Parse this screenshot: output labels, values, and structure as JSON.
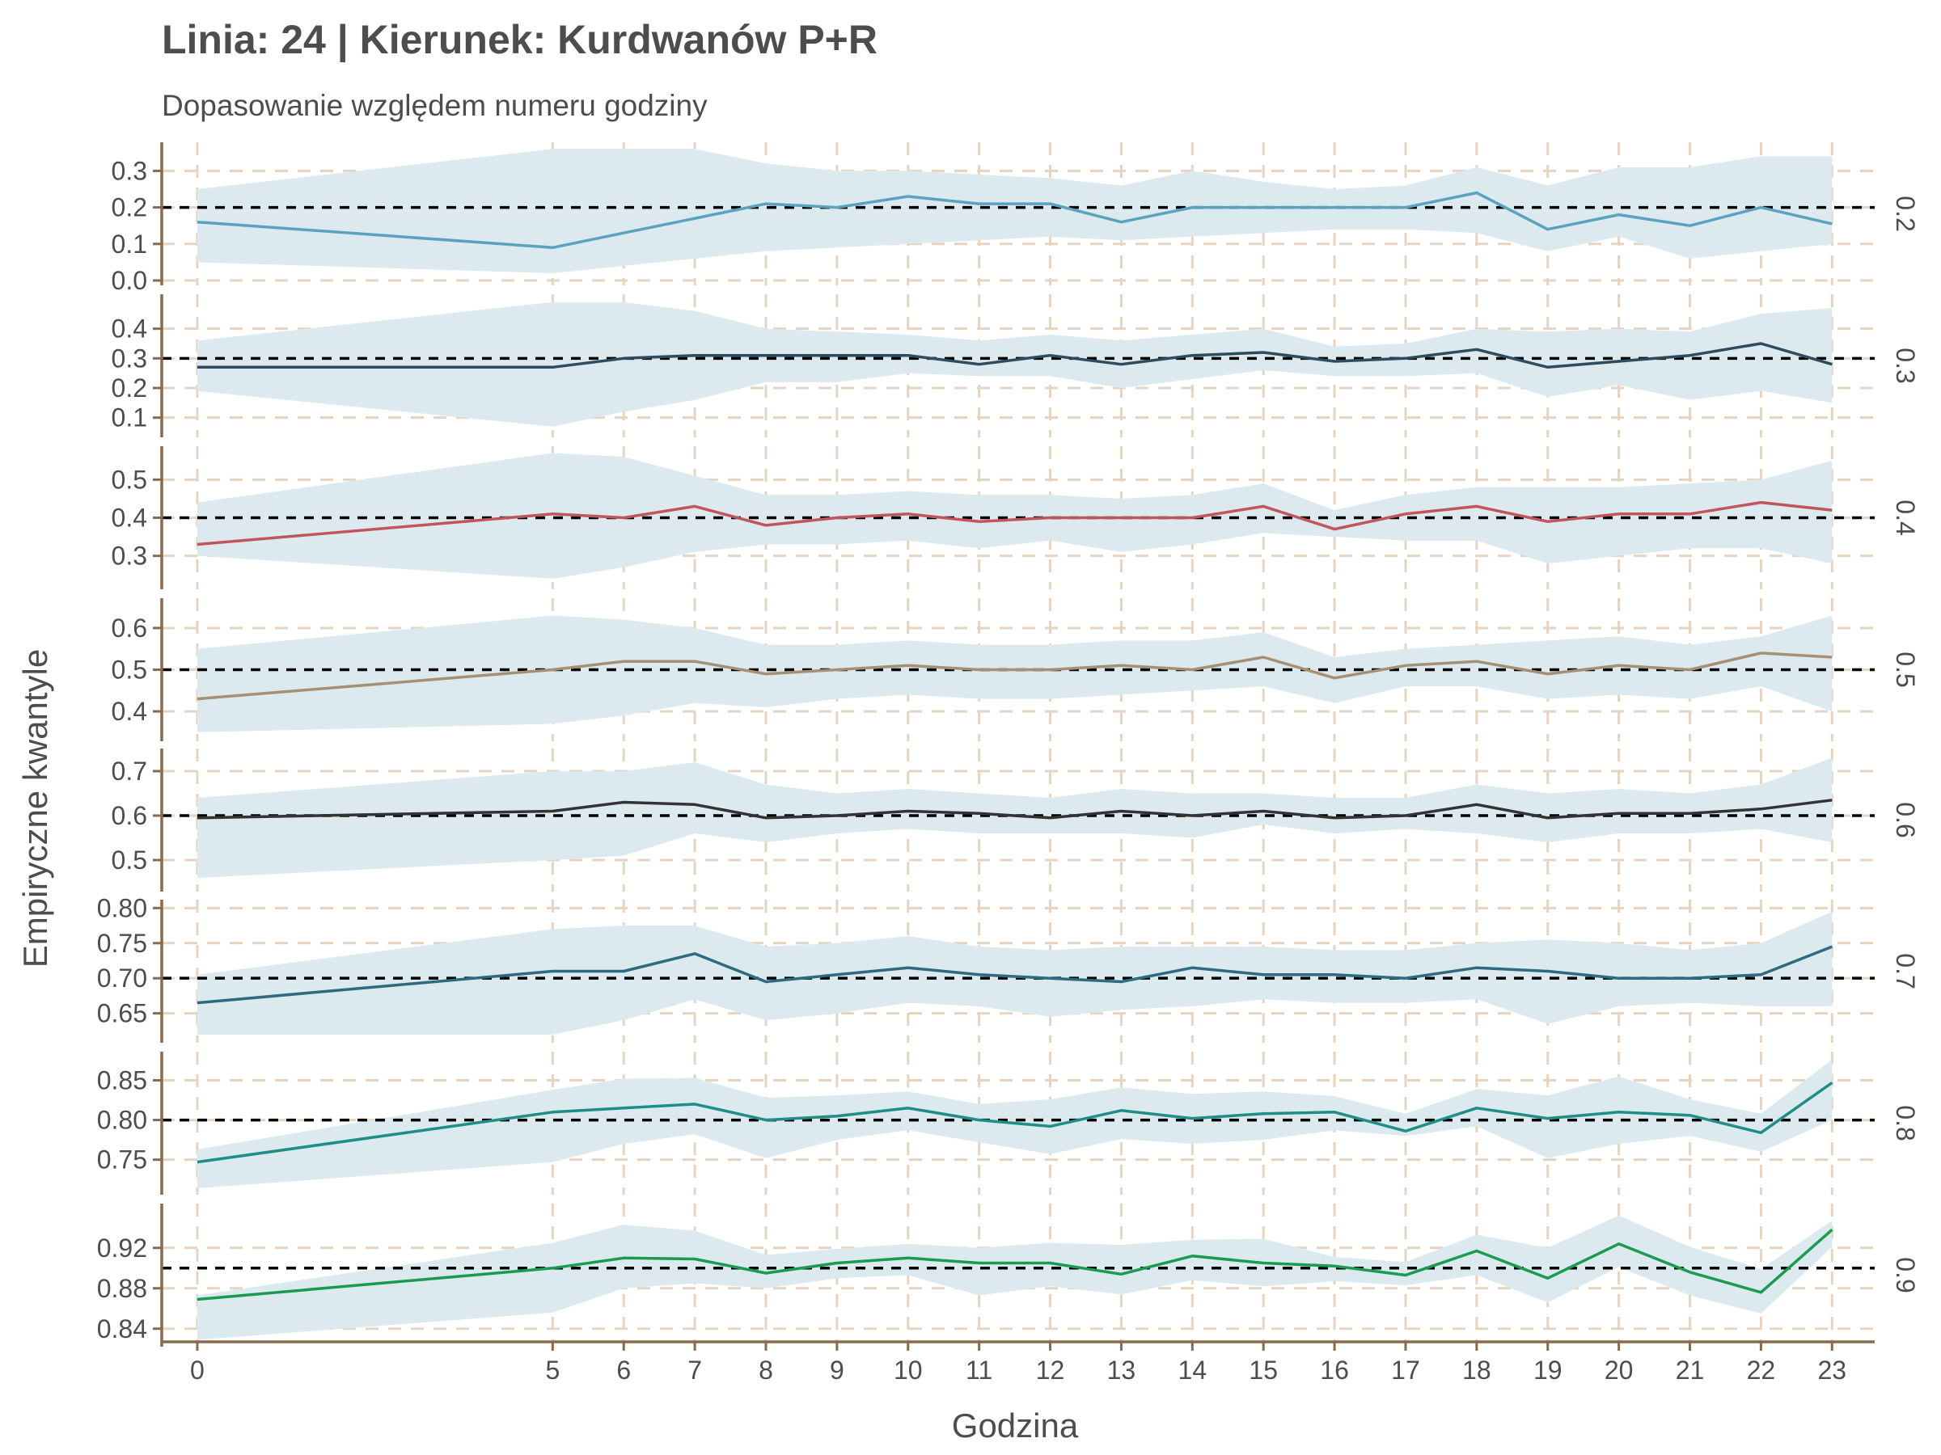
{
  "chart_data": {
    "type": "line",
    "title": "Linia: 24 | Kierunek: Kurdwanów P+R",
    "subtitle": "Dopasowanie względem numeru godziny",
    "xlabel": "Godzina",
    "ylabel": "Empiryczne kwantyle",
    "x": [
      0,
      5,
      6,
      7,
      8,
      9,
      10,
      11,
      12,
      13,
      14,
      15,
      16,
      17,
      18,
      19,
      20,
      21,
      22,
      23
    ],
    "xlim": [
      -0.5,
      23.6
    ],
    "grid": true,
    "band_color": "#dce9ee",
    "grid_color": "#e6d3c0",
    "axis_color": "#8a6a4e",
    "reference_line_color": "#000000",
    "panels": [
      {
        "strip": "0.2",
        "reference": 0.2,
        "color": "#5aa3bf",
        "ylim": [
          0.0,
          0.365
        ],
        "yticks": [
          0.0,
          0.1,
          0.2,
          0.3
        ],
        "ytick_labels": [
          "0.0",
          "0.1",
          "0.2",
          "0.3"
        ],
        "values": [
          0.16,
          0.09,
          0.13,
          0.17,
          0.21,
          0.2,
          0.23,
          0.21,
          0.21,
          0.16,
          0.2,
          0.2,
          0.2,
          0.2,
          0.24,
          0.14,
          0.18,
          0.15,
          0.2,
          0.155
        ],
        "lower": [
          0.05,
          0.02,
          0.04,
          0.06,
          0.08,
          0.09,
          0.1,
          0.11,
          0.12,
          0.11,
          0.12,
          0.13,
          0.14,
          0.14,
          0.13,
          0.08,
          0.12,
          0.06,
          0.08,
          0.1
        ],
        "upper": [
          0.25,
          0.36,
          0.36,
          0.36,
          0.32,
          0.3,
          0.3,
          0.29,
          0.28,
          0.26,
          0.3,
          0.27,
          0.25,
          0.26,
          0.31,
          0.26,
          0.31,
          0.31,
          0.34,
          0.34
        ]
      },
      {
        "strip": "0.3",
        "reference": 0.3,
        "color": "#2f4b5e",
        "ylim": [
          0.05,
          0.5
        ],
        "yticks": [
          0.1,
          0.2,
          0.3,
          0.4
        ],
        "ytick_labels": [
          "0.1",
          "0.2",
          "0.3",
          "0.4"
        ],
        "values": [
          0.27,
          0.27,
          0.3,
          0.31,
          0.31,
          0.31,
          0.31,
          0.28,
          0.31,
          0.28,
          0.31,
          0.32,
          0.29,
          0.3,
          0.33,
          0.27,
          0.29,
          0.31,
          0.35,
          0.28
        ],
        "lower": [
          0.19,
          0.07,
          0.12,
          0.16,
          0.22,
          0.22,
          0.25,
          0.24,
          0.24,
          0.2,
          0.23,
          0.26,
          0.24,
          0.24,
          0.25,
          0.17,
          0.21,
          0.16,
          0.19,
          0.15
        ],
        "upper": [
          0.36,
          0.49,
          0.49,
          0.46,
          0.4,
          0.39,
          0.38,
          0.36,
          0.38,
          0.36,
          0.38,
          0.4,
          0.34,
          0.35,
          0.4,
          0.39,
          0.4,
          0.39,
          0.45,
          0.47
        ]
      },
      {
        "strip": "0.4",
        "reference": 0.4,
        "color": "#c0555e",
        "ylim": [
          0.225,
          0.575
        ],
        "yticks": [
          0.3,
          0.4,
          0.5
        ],
        "ytick_labels": [
          "0.3",
          "0.4",
          "0.5"
        ],
        "values": [
          0.33,
          0.41,
          0.4,
          0.43,
          0.38,
          0.4,
          0.41,
          0.39,
          0.4,
          0.4,
          0.4,
          0.43,
          0.37,
          0.41,
          0.43,
          0.39,
          0.41,
          0.41,
          0.44,
          0.42
        ],
        "lower": [
          0.3,
          0.24,
          0.27,
          0.31,
          0.33,
          0.33,
          0.34,
          0.32,
          0.34,
          0.31,
          0.33,
          0.36,
          0.35,
          0.34,
          0.34,
          0.28,
          0.3,
          0.32,
          0.32,
          0.28
        ],
        "upper": [
          0.44,
          0.57,
          0.56,
          0.51,
          0.46,
          0.46,
          0.47,
          0.46,
          0.46,
          0.45,
          0.46,
          0.49,
          0.42,
          0.46,
          0.48,
          0.48,
          0.48,
          0.49,
          0.5,
          0.55
        ]
      },
      {
        "strip": "0.5",
        "reference": 0.5,
        "color": "#a69073",
        "ylim": [
          0.34,
          0.66
        ],
        "yticks": [
          0.4,
          0.5,
          0.6
        ],
        "ytick_labels": [
          "0.4",
          "0.5",
          "0.6"
        ],
        "values": [
          0.43,
          0.5,
          0.52,
          0.52,
          0.49,
          0.5,
          0.51,
          0.5,
          0.5,
          0.51,
          0.5,
          0.53,
          0.48,
          0.51,
          0.52,
          0.49,
          0.51,
          0.5,
          0.54,
          0.53
        ],
        "lower": [
          0.35,
          0.37,
          0.39,
          0.42,
          0.41,
          0.43,
          0.44,
          0.43,
          0.43,
          0.44,
          0.45,
          0.46,
          0.42,
          0.46,
          0.46,
          0.43,
          0.44,
          0.43,
          0.46,
          0.4
        ],
        "upper": [
          0.55,
          0.63,
          0.62,
          0.6,
          0.56,
          0.56,
          0.57,
          0.56,
          0.56,
          0.57,
          0.57,
          0.59,
          0.53,
          0.55,
          0.56,
          0.57,
          0.58,
          0.56,
          0.58,
          0.63
        ]
      },
      {
        "strip": "0.6",
        "reference": 0.6,
        "color": "#333333",
        "ylim": [
          0.44,
          0.74
        ],
        "yticks": [
          0.5,
          0.6,
          0.7
        ],
        "ytick_labels": [
          "0.5",
          "0.6",
          "0.7"
        ],
        "values": [
          0.595,
          0.61,
          0.63,
          0.625,
          0.595,
          0.6,
          0.61,
          0.605,
          0.595,
          0.61,
          0.6,
          0.61,
          0.595,
          0.6,
          0.625,
          0.595,
          0.605,
          0.605,
          0.615,
          0.635
        ],
        "lower": [
          0.46,
          0.5,
          0.51,
          0.56,
          0.54,
          0.56,
          0.57,
          0.56,
          0.56,
          0.56,
          0.55,
          0.58,
          0.56,
          0.57,
          0.56,
          0.54,
          0.56,
          0.56,
          0.57,
          0.54
        ],
        "upper": [
          0.64,
          0.7,
          0.7,
          0.72,
          0.67,
          0.65,
          0.66,
          0.65,
          0.64,
          0.66,
          0.65,
          0.65,
          0.64,
          0.64,
          0.67,
          0.65,
          0.66,
          0.65,
          0.67,
          0.73
        ]
      },
      {
        "strip": "0.7",
        "reference": 0.7,
        "color": "#2e6a80",
        "ylim": [
          0.615,
          0.805
        ],
        "yticks": [
          0.65,
          0.7,
          0.75,
          0.8
        ],
        "ytick_labels": [
          "0.65",
          "0.70",
          "0.75",
          "0.80"
        ],
        "values": [
          0.665,
          0.71,
          0.71,
          0.735,
          0.695,
          0.705,
          0.715,
          0.705,
          0.7,
          0.695,
          0.715,
          0.705,
          0.705,
          0.7,
          0.715,
          0.71,
          0.7,
          0.7,
          0.705,
          0.745
        ],
        "lower": [
          0.62,
          0.62,
          0.64,
          0.67,
          0.64,
          0.65,
          0.665,
          0.66,
          0.645,
          0.655,
          0.66,
          0.67,
          0.665,
          0.665,
          0.67,
          0.635,
          0.66,
          0.665,
          0.66,
          0.66
        ],
        "upper": [
          0.705,
          0.77,
          0.775,
          0.775,
          0.745,
          0.75,
          0.76,
          0.745,
          0.74,
          0.745,
          0.745,
          0.745,
          0.74,
          0.74,
          0.75,
          0.755,
          0.75,
          0.74,
          0.75,
          0.795
        ]
      },
      {
        "strip": "0.8",
        "reference": 0.8,
        "color": "#1f8e86",
        "ylim": [
          0.712,
          0.88
        ],
        "yticks": [
          0.75,
          0.8,
          0.85
        ],
        "ytick_labels": [
          "0.75",
          "0.80",
          "0.85"
        ],
        "values": [
          0.747,
          0.81,
          0.815,
          0.82,
          0.8,
          0.805,
          0.815,
          0.8,
          0.792,
          0.812,
          0.802,
          0.808,
          0.81,
          0.786,
          0.815,
          0.802,
          0.81,
          0.806,
          0.784,
          0.847
        ],
        "lower": [
          0.714,
          0.747,
          0.77,
          0.782,
          0.752,
          0.775,
          0.787,
          0.772,
          0.757,
          0.776,
          0.77,
          0.775,
          0.787,
          0.78,
          0.792,
          0.752,
          0.77,
          0.78,
          0.76,
          0.8
        ],
        "upper": [
          0.763,
          0.838,
          0.852,
          0.853,
          0.828,
          0.831,
          0.836,
          0.82,
          0.826,
          0.841,
          0.833,
          0.836,
          0.83,
          0.808,
          0.839,
          0.831,
          0.855,
          0.826,
          0.808,
          0.876
        ]
      },
      {
        "strip": "0.9",
        "reference": 0.9,
        "color": "#1b9a52",
        "ylim": [
          0.827,
          0.959
        ],
        "yticks": [
          0.84,
          0.88,
          0.92
        ],
        "ytick_labels": [
          "0.84",
          "0.88",
          "0.92"
        ],
        "values": [
          0.869,
          0.9,
          0.91,
          0.909,
          0.895,
          0.905,
          0.91,
          0.905,
          0.905,
          0.894,
          0.912,
          0.905,
          0.902,
          0.893,
          0.917,
          0.89,
          0.924,
          0.896,
          0.876,
          0.938
        ],
        "lower": [
          0.829,
          0.856,
          0.88,
          0.885,
          0.88,
          0.89,
          0.893,
          0.873,
          0.882,
          0.874,
          0.888,
          0.882,
          0.887,
          0.883,
          0.893,
          0.866,
          0.901,
          0.873,
          0.855,
          0.921
        ],
        "upper": [
          0.873,
          0.925,
          0.943,
          0.937,
          0.913,
          0.919,
          0.924,
          0.92,
          0.925,
          0.923,
          0.928,
          0.929,
          0.911,
          0.906,
          0.933,
          0.92,
          0.952,
          0.921,
          0.899,
          0.947
        ]
      }
    ]
  }
}
